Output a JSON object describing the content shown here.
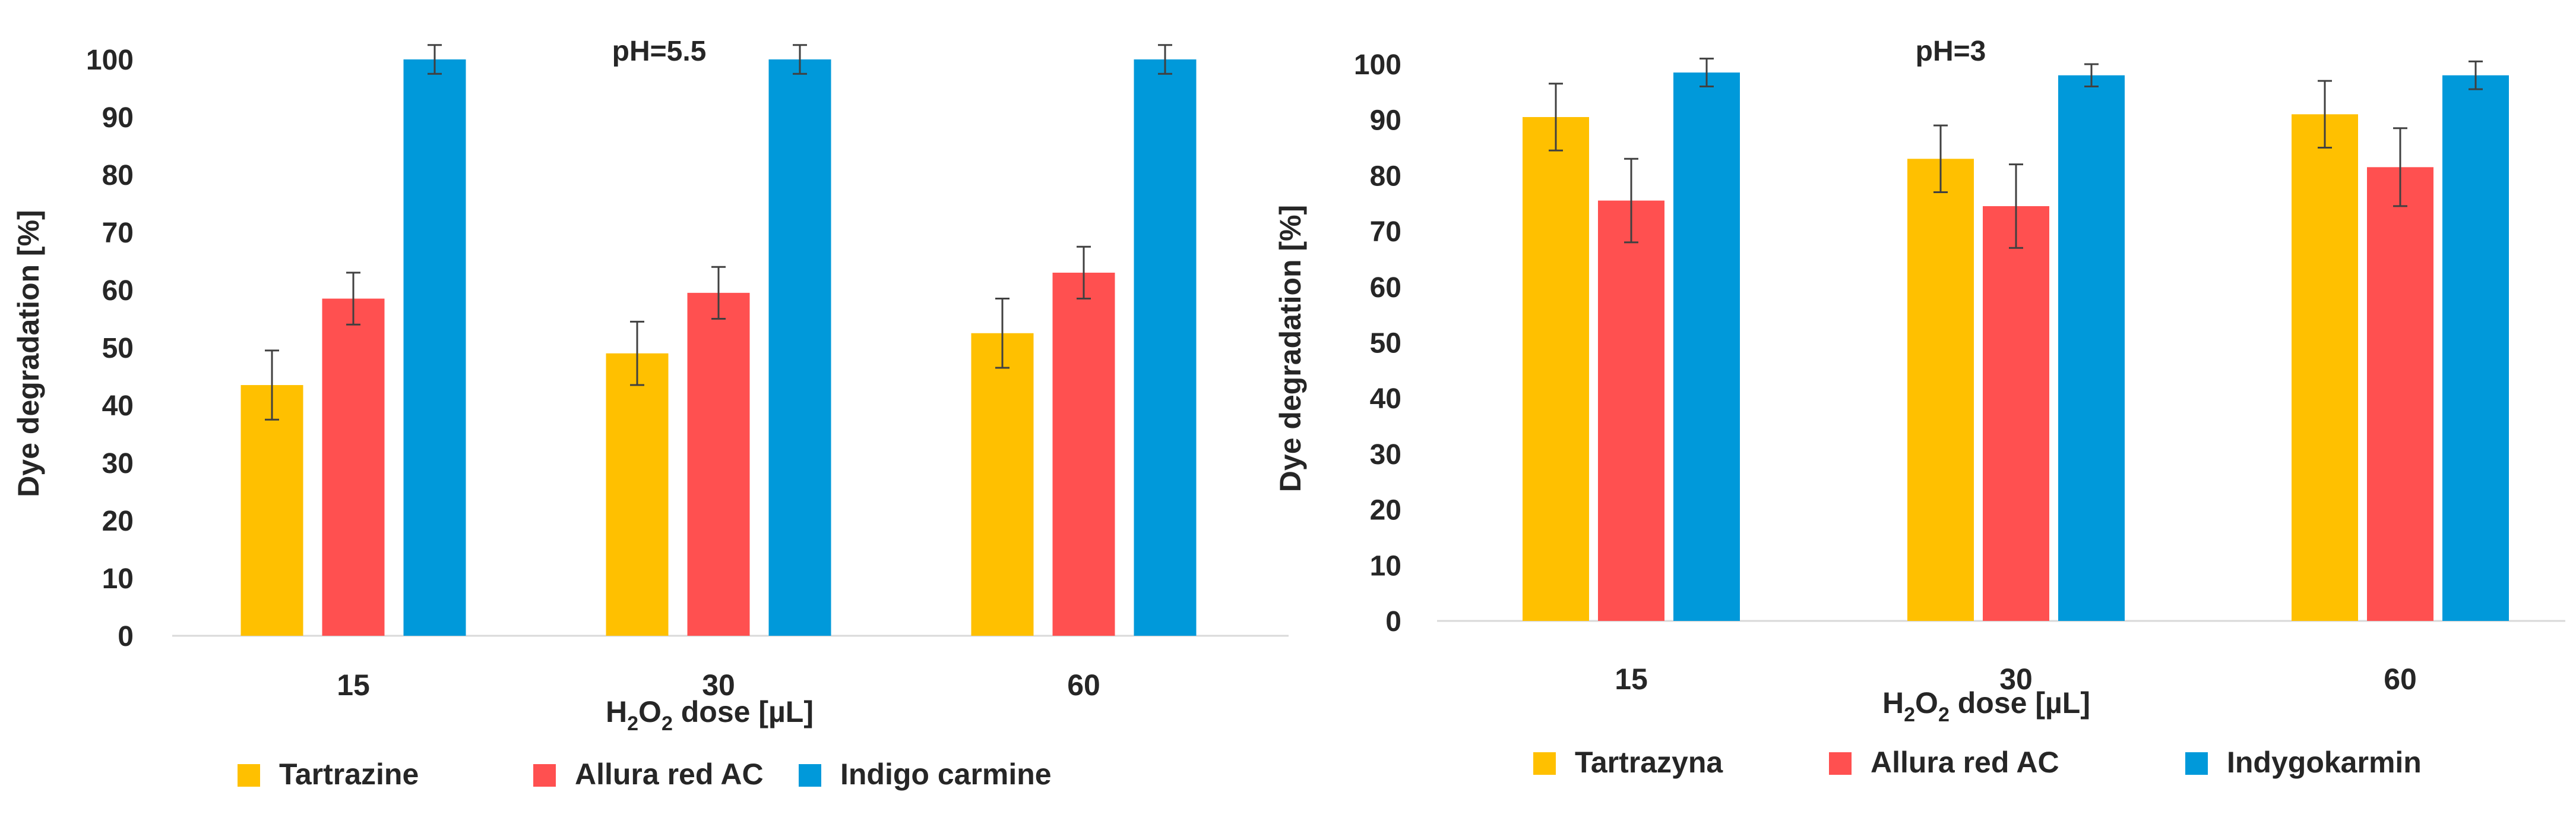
{
  "chart_data": [
    {
      "type": "bar",
      "title": "pH=5.5",
      "ylabel": "Dye degradation [%]",
      "xlabel": {
        "pre": "H",
        "sub1": "2",
        "mid": "O",
        "sub2": "2",
        "post": " dose [µL]"
      },
      "categories": [
        "15",
        "30",
        "60"
      ],
      "ylim": [
        0,
        100
      ],
      "yticks": [
        "0",
        "10",
        "20",
        "30",
        "40",
        "50",
        "60",
        "70",
        "80",
        "90",
        "100"
      ],
      "grid": false,
      "legend_position": "bottom",
      "series": [
        {
          "name": "Tartrazine",
          "color": "#FFC000",
          "values": [
            43.5,
            49,
            52.5
          ],
          "errors": [
            6,
            5.5,
            6
          ]
        },
        {
          "name": "Allura red AC",
          "color": "#FF5050",
          "values": [
            58.5,
            59.5,
            63
          ],
          "errors": [
            4.5,
            4.5,
            4.5
          ]
        },
        {
          "name": "Indigo carmine",
          "color": "#0099DA",
          "values": [
            100,
            100,
            100
          ],
          "errors": [
            2.5,
            2.5,
            2.5
          ]
        }
      ]
    },
    {
      "type": "bar",
      "title": "pH=3",
      "ylabel": "Dye degradation [%]",
      "xlabel": {
        "pre": "H",
        "sub1": "2",
        "mid": "O",
        "sub2": "2",
        "post": " dose [µL]"
      },
      "categories": [
        "15",
        "30",
        "60"
      ],
      "ylim": [
        0,
        100
      ],
      "yticks": [
        "0",
        "10",
        "20",
        "30",
        "40",
        "50",
        "60",
        "70",
        "80",
        "90",
        "100"
      ],
      "grid": false,
      "legend_position": "bottom",
      "series": [
        {
          "name": "Tartrazyna",
          "color": "#FFC000",
          "values": [
            90.5,
            83,
            91
          ],
          "errors": [
            6,
            6,
            6
          ]
        },
        {
          "name": "Allura red AC",
          "color": "#FF5050",
          "values": [
            75.5,
            74.5,
            81.5
          ],
          "errors": [
            7.5,
            7.5,
            7
          ]
        },
        {
          "name": "Indygokarmin",
          "color": "#0099DA",
          "values": [
            98.5,
            98,
            98
          ],
          "errors": [
            2.5,
            2,
            2.5
          ]
        }
      ]
    }
  ]
}
